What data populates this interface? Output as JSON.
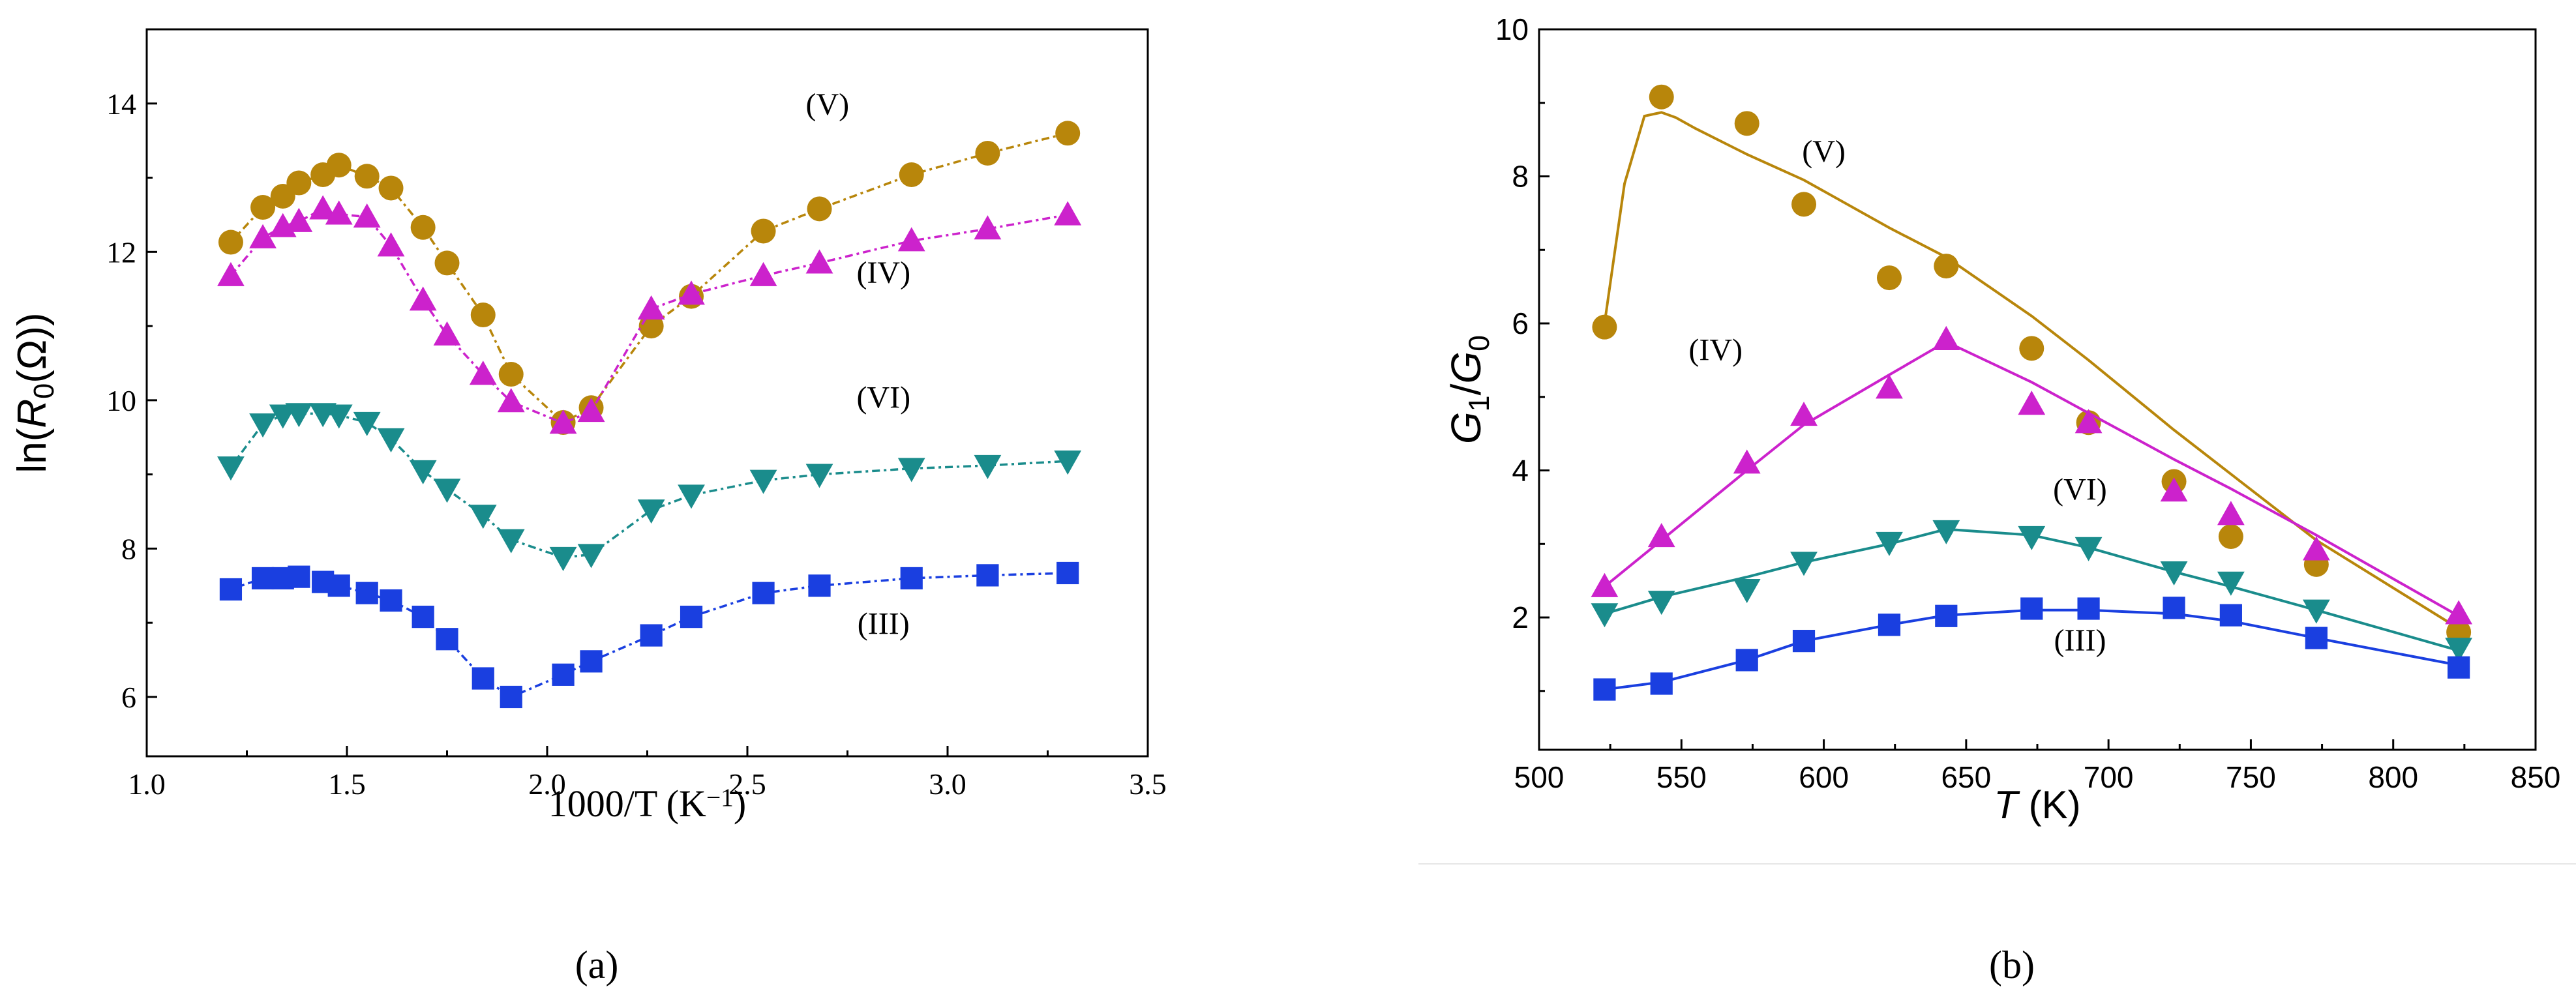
{
  "chart_data": [
    {
      "panel_label": "(a)",
      "type": "line",
      "title": "",
      "xlabel": "1000/T (K−1)",
      "ylabel": "ln(R0(Ω))",
      "xlim": [
        1.0,
        3.5
      ],
      "ylim": [
        5.2,
        15
      ],
      "xticks": [
        1.0,
        1.5,
        2.0,
        2.5,
        3.0,
        3.5
      ],
      "xtick_labels": [
        "1.0",
        "1.5",
        "2.0",
        "2.5",
        "3.0",
        "3.5"
      ],
      "yticks": [
        6,
        8,
        10,
        12,
        14
      ],
      "ytick_labels": [
        "6",
        "8",
        "10",
        "12",
        "14"
      ],
      "grid": false,
      "series": [
        {
          "name": "(V)",
          "color": "#B8860B",
          "marker": "circle",
          "x": [
            1.21,
            1.29,
            1.34,
            1.38,
            1.44,
            1.48,
            1.55,
            1.61,
            1.69,
            1.75,
            1.84,
            1.91,
            2.04,
            2.11,
            2.26,
            2.36,
            2.54,
            2.68,
            2.91,
            3.1,
            3.3
          ],
          "y": [
            12.13,
            12.6,
            12.75,
            12.93,
            13.04,
            13.17,
            13.02,
            12.86,
            12.33,
            11.85,
            11.15,
            10.35,
            9.7,
            9.9,
            11.0,
            11.4,
            12.28,
            12.58,
            13.04,
            13.33,
            13.6
          ]
        },
        {
          "name": "(IV)",
          "color": "#CC22CC",
          "marker": "triangle-up",
          "x": [
            1.21,
            1.29,
            1.34,
            1.38,
            1.44,
            1.48,
            1.55,
            1.61,
            1.69,
            1.75,
            1.84,
            1.91,
            2.04,
            2.11,
            2.26,
            2.36,
            2.54,
            2.68,
            2.91,
            3.1,
            3.3
          ],
          "y": [
            11.68,
            12.19,
            12.34,
            12.41,
            12.58,
            12.51,
            12.47,
            12.08,
            11.35,
            10.88,
            10.35,
            9.98,
            9.69,
            9.85,
            11.23,
            11.43,
            11.68,
            11.85,
            12.15,
            12.31,
            12.5
          ]
        },
        {
          "name": "(VI)",
          "color": "#1A8C8C",
          "marker": "triangle-down",
          "x": [
            1.21,
            1.29,
            1.34,
            1.38,
            1.44,
            1.48,
            1.55,
            1.61,
            1.69,
            1.75,
            1.84,
            1.91,
            2.04,
            2.11,
            2.26,
            2.36,
            2.54,
            2.68,
            2.91,
            3.1,
            3.3
          ],
          "y": [
            9.1,
            9.68,
            9.8,
            9.82,
            9.82,
            9.8,
            9.7,
            9.48,
            9.05,
            8.8,
            8.45,
            8.12,
            7.88,
            7.92,
            8.52,
            8.72,
            8.92,
            9.0,
            9.08,
            9.12,
            9.18
          ]
        },
        {
          "name": "(III)",
          "color": "#1A3FE0",
          "marker": "square",
          "x": [
            1.21,
            1.29,
            1.34,
            1.38,
            1.44,
            1.48,
            1.55,
            1.61,
            1.69,
            1.75,
            1.84,
            1.91,
            2.04,
            2.11,
            2.26,
            2.36,
            2.54,
            2.68,
            2.91,
            3.1,
            3.3
          ],
          "y": [
            7.45,
            7.6,
            7.6,
            7.62,
            7.55,
            7.5,
            7.4,
            7.3,
            7.08,
            6.78,
            6.25,
            6.0,
            6.3,
            6.48,
            6.83,
            7.08,
            7.4,
            7.5,
            7.6,
            7.64,
            7.67
          ]
        }
      ],
      "annotations": [
        {
          "text": "(V)",
          "x": 2.7,
          "y": 13.85
        },
        {
          "text": "(IV)",
          "x": 2.84,
          "y": 11.58
        },
        {
          "text": "(VI)",
          "x": 2.84,
          "y": 9.9
        },
        {
          "text": "(III)",
          "x": 2.84,
          "y": 6.85
        }
      ]
    },
    {
      "panel_label": "(b)",
      "type": "line",
      "title": "",
      "xlabel": "T (K)",
      "ylabel": "G1/G0",
      "xlim": [
        500,
        850
      ],
      "ylim": [
        0.2,
        10
      ],
      "xticks": [
        500,
        550,
        600,
        650,
        700,
        750,
        800,
        850
      ],
      "xtick_labels": [
        "500",
        "550",
        "600",
        "650",
        "700",
        "750",
        "800",
        "850"
      ],
      "yticks": [
        2,
        4,
        6,
        8,
        10
      ],
      "ytick_labels": [
        "2",
        "4",
        "6",
        "8",
        "10"
      ],
      "grid": false,
      "series": [
        {
          "name": "(V)",
          "color": "#B8860B",
          "marker": "circle",
          "points_x": [
            523,
            543,
            573,
            593,
            623,
            643,
            673,
            693,
            723,
            743,
            773,
            823
          ],
          "points_y": [
            5.95,
            9.08,
            8.72,
            7.62,
            6.62,
            6.78,
            5.66,
            4.65,
            3.85,
            3.1,
            2.72,
            1.8
          ],
          "fit_x": [
            523,
            530,
            537,
            543,
            548,
            555,
            573,
            593,
            623,
            643,
            673,
            693,
            723,
            743,
            773,
            823
          ],
          "fit_y": [
            6.0,
            7.9,
            8.82,
            8.87,
            8.8,
            8.65,
            8.3,
            7.95,
            7.3,
            6.9,
            6.1,
            5.5,
            4.55,
            3.95,
            3.05,
            1.85
          ]
        },
        {
          "name": "(IV)",
          "color": "#CC22CC",
          "marker": "triangle-up",
          "points_x": [
            523,
            543,
            573,
            593,
            623,
            643,
            673,
            693,
            723,
            743,
            773,
            823
          ],
          "points_y": [
            2.42,
            3.1,
            4.1,
            4.75,
            5.12,
            5.78,
            4.9,
            4.65,
            3.72,
            3.4,
            2.92,
            2.05
          ],
          "fit_x": [
            523,
            543,
            573,
            593,
            623,
            643,
            673,
            693,
            723,
            743,
            773,
            823
          ],
          "fit_y": [
            2.42,
            3.05,
            4.0,
            4.62,
            5.3,
            5.75,
            5.2,
            4.78,
            4.15,
            3.75,
            3.12,
            2.02
          ]
        },
        {
          "name": "(VI)",
          "color": "#1A8C8C",
          "marker": "triangle-down",
          "points_x": [
            523,
            543,
            573,
            593,
            623,
            643,
            673,
            693,
            723,
            743,
            773,
            823
          ],
          "points_y": [
            2.05,
            2.22,
            2.38,
            2.75,
            3.02,
            3.18,
            3.1,
            2.95,
            2.62,
            2.48,
            2.1,
            1.58
          ],
          "fit_x": [
            523,
            543,
            573,
            593,
            623,
            643,
            673,
            693,
            723,
            743,
            773,
            823
          ],
          "fit_y": [
            2.05,
            2.28,
            2.55,
            2.75,
            3.0,
            3.2,
            3.12,
            2.95,
            2.62,
            2.42,
            2.1,
            1.55
          ]
        },
        {
          "name": "(III)",
          "color": "#1A3FE0",
          "marker": "square",
          "points_x": [
            523,
            543,
            573,
            593,
            623,
            643,
            673,
            693,
            723,
            743,
            773,
            823
          ],
          "points_y": [
            1.02,
            1.1,
            1.42,
            1.68,
            1.9,
            2.02,
            2.12,
            2.12,
            2.13,
            2.03,
            1.72,
            1.32
          ],
          "fit_x": [
            523,
            543,
            573,
            593,
            623,
            643,
            673,
            693,
            723,
            743,
            773,
            823
          ],
          "fit_y": [
            1.02,
            1.12,
            1.42,
            1.68,
            1.9,
            2.03,
            2.1,
            2.1,
            2.05,
            1.95,
            1.72,
            1.35
          ]
        }
      ],
      "annotations": [
        {
          "text": "(V)",
          "x": 600,
          "y": 8.2
        },
        {
          "text": "(IV)",
          "x": 562,
          "y": 5.5
        },
        {
          "text": "(VI)",
          "x": 690,
          "y": 3.6
        },
        {
          "text": "(III)",
          "x": 690,
          "y": 1.55
        }
      ]
    }
  ]
}
